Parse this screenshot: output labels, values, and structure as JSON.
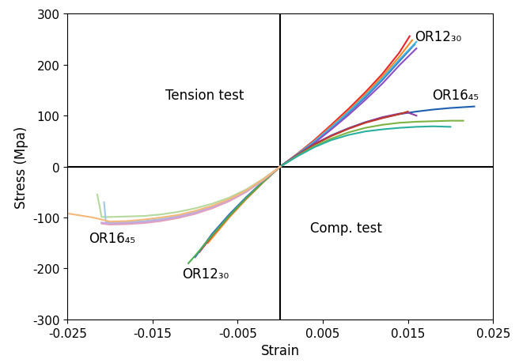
{
  "chart_data": {
    "type": "line",
    "x_label": "Strain",
    "y_label": "Stress (Mpa)",
    "xlim": [
      -0.025,
      0.025
    ],
    "xticks": [
      -0.025,
      -0.015,
      -0.005,
      0.005,
      0.015,
      0.025
    ],
    "ylim": [
      -300,
      300
    ],
    "yticks": [
      -300,
      -200,
      -100,
      0,
      100,
      200,
      300
    ],
    "grid": false,
    "annotations": [
      "OR12₃₀",
      "OR16₄₅",
      "Tension test",
      "OR16₄₅",
      "OR12₃₀",
      "Comp. test"
    ],
    "series": [
      {
        "color": "#e8262b",
        "x": [
          0,
          0.002,
          0.004,
          0.006,
          0.008,
          0.01,
          0.012,
          0.014,
          0.0152
        ],
        "values": [
          0,
          25,
          52,
          82,
          113,
          146,
          182,
          224,
          256
        ]
      },
      {
        "color": "#f28c28",
        "x": [
          0,
          0.002,
          0.004,
          0.006,
          0.008,
          0.01,
          0.012,
          0.014,
          0.0155
        ],
        "values": [
          0,
          24,
          50,
          79,
          109,
          142,
          177,
          216,
          248
        ]
      },
      {
        "color": "#3a6fc4",
        "x": [
          0,
          0.002,
          0.004,
          0.006,
          0.008,
          0.01,
          0.012,
          0.014,
          0.0158
        ],
        "values": [
          0,
          23,
          48,
          76,
          105,
          136,
          170,
          207,
          240
        ]
      },
      {
        "color": "#3fb5e0",
        "x": [
          0,
          0.002,
          0.004,
          0.006,
          0.008,
          0.01,
          0.012,
          0.014,
          0.016
        ],
        "values": [
          0,
          24,
          49,
          77,
          107,
          139,
          173,
          210,
          245
        ]
      },
      {
        "color": "#8a4fc4",
        "x": [
          0,
          0.002,
          0.004,
          0.006,
          0.008,
          0.01,
          0.012,
          0.014,
          0.016
        ],
        "values": [
          0,
          22,
          46,
          73,
          101,
          131,
          163,
          199,
          232
        ]
      },
      {
        "color": "#1f5fb0",
        "x": [
          0,
          0.002,
          0.004,
          0.006,
          0.008,
          0.01,
          0.012,
          0.014,
          0.016,
          0.018,
          0.02,
          0.0228
        ],
        "values": [
          0,
          23,
          44,
          61,
          75,
          87,
          96,
          103,
          108,
          112,
          115,
          118
        ]
      },
      {
        "color": "#8a3fa0",
        "x": [
          0,
          0.002,
          0.004,
          0.006,
          0.008,
          0.01,
          0.012,
          0.014,
          0.015,
          0.016
        ],
        "values": [
          0,
          23,
          44,
          61,
          75,
          87,
          97,
          104,
          106,
          100
        ]
      },
      {
        "color": "#c0392b",
        "x": [
          0,
          0.002,
          0.004,
          0.006,
          0.008,
          0.01,
          0.012,
          0.014,
          0.015
        ],
        "values": [
          0,
          22,
          43,
          60,
          74,
          86,
          95,
          103,
          108
        ]
      },
      {
        "color": "#7cb342",
        "x": [
          0,
          0.002,
          0.004,
          0.006,
          0.008,
          0.01,
          0.012,
          0.014,
          0.016,
          0.018,
          0.02,
          0.0215
        ],
        "values": [
          0,
          21,
          40,
          55,
          67,
          76,
          82,
          86,
          88,
          89,
          90,
          90
        ]
      },
      {
        "color": "#2ab0a0",
        "x": [
          0,
          0.002,
          0.004,
          0.006,
          0.008,
          0.01,
          0.012,
          0.014,
          0.016,
          0.018,
          0.02
        ],
        "values": [
          0,
          20,
          38,
          52,
          62,
          69,
          73,
          76,
          78,
          79,
          78
        ]
      },
      {
        "color": "#f28c28",
        "x": [
          0,
          -0.002,
          -0.004,
          -0.006,
          -0.008,
          -0.0085
        ],
        "values": [
          0,
          -31,
          -64,
          -100,
          -140,
          -150
        ]
      },
      {
        "color": "#e8262b",
        "x": [
          0,
          -0.002,
          -0.004,
          -0.006,
          -0.008,
          -0.0095
        ],
        "values": [
          0,
          -30,
          -62,
          -97,
          -136,
          -168
        ]
      },
      {
        "color": "#3a6fc4",
        "x": [
          0,
          -0.002,
          -0.004,
          -0.006,
          -0.008,
          -0.01
        ],
        "values": [
          0,
          -29,
          -60,
          -94,
          -132,
          -178
        ]
      },
      {
        "color": "#4caf50",
        "x": [
          0,
          -0.002,
          -0.004,
          -0.006,
          -0.008,
          -0.01,
          -0.0108
        ],
        "values": [
          0,
          -30,
          -62,
          -97,
          -135,
          -175,
          -190
        ]
      },
      {
        "color": "#b5d99c",
        "x": [
          0,
          -0.002,
          -0.004,
          -0.006,
          -0.008,
          -0.01,
          -0.012,
          -0.014,
          -0.016,
          -0.018,
          -0.02,
          -0.021,
          -0.0212,
          -0.0215
        ],
        "values": [
          0,
          -24,
          -45,
          -61,
          -73,
          -82,
          -89,
          -94,
          -97,
          -98,
          -99,
          -99,
          -80,
          -55
        ]
      },
      {
        "color": "#9fc8e8",
        "x": [
          0,
          -0.002,
          -0.004,
          -0.006,
          -0.008,
          -0.01,
          -0.012,
          -0.014,
          -0.016,
          -0.018,
          -0.02,
          -0.0205,
          -0.0207
        ],
        "values": [
          0,
          -26,
          -48,
          -65,
          -79,
          -89,
          -97,
          -103,
          -107,
          -109,
          -110,
          -108,
          -70
        ]
      },
      {
        "color": "#e8a0b4",
        "x": [
          0,
          -0.002,
          -0.004,
          -0.006,
          -0.008,
          -0.01,
          -0.012,
          -0.014,
          -0.016,
          -0.018,
          -0.02,
          -0.021
        ],
        "values": [
          0,
          -27,
          -50,
          -68,
          -82,
          -93,
          -101,
          -107,
          -111,
          -113,
          -114,
          -112
        ]
      },
      {
        "color": "#c9a6dc",
        "x": [
          0,
          -0.002,
          -0.004,
          -0.006,
          -0.008,
          -0.01,
          -0.012,
          -0.014,
          -0.016,
          -0.018,
          -0.02,
          -0.021
        ],
        "values": [
          0,
          -26,
          -49,
          -66,
          -80,
          -91,
          -99,
          -105,
          -109,
          -111,
          -112,
          -110
        ]
      },
      {
        "color": "#f5b87a",
        "x": [
          0,
          -0.002,
          -0.004,
          -0.006,
          -0.008,
          -0.01,
          -0.012,
          -0.014,
          -0.016,
          -0.018,
          -0.02,
          -0.022,
          -0.025
        ],
        "values": [
          0,
          -25,
          -47,
          -64,
          -77,
          -87,
          -95,
          -100,
          -104,
          -107,
          -108,
          -100,
          -92
        ]
      }
    ]
  }
}
